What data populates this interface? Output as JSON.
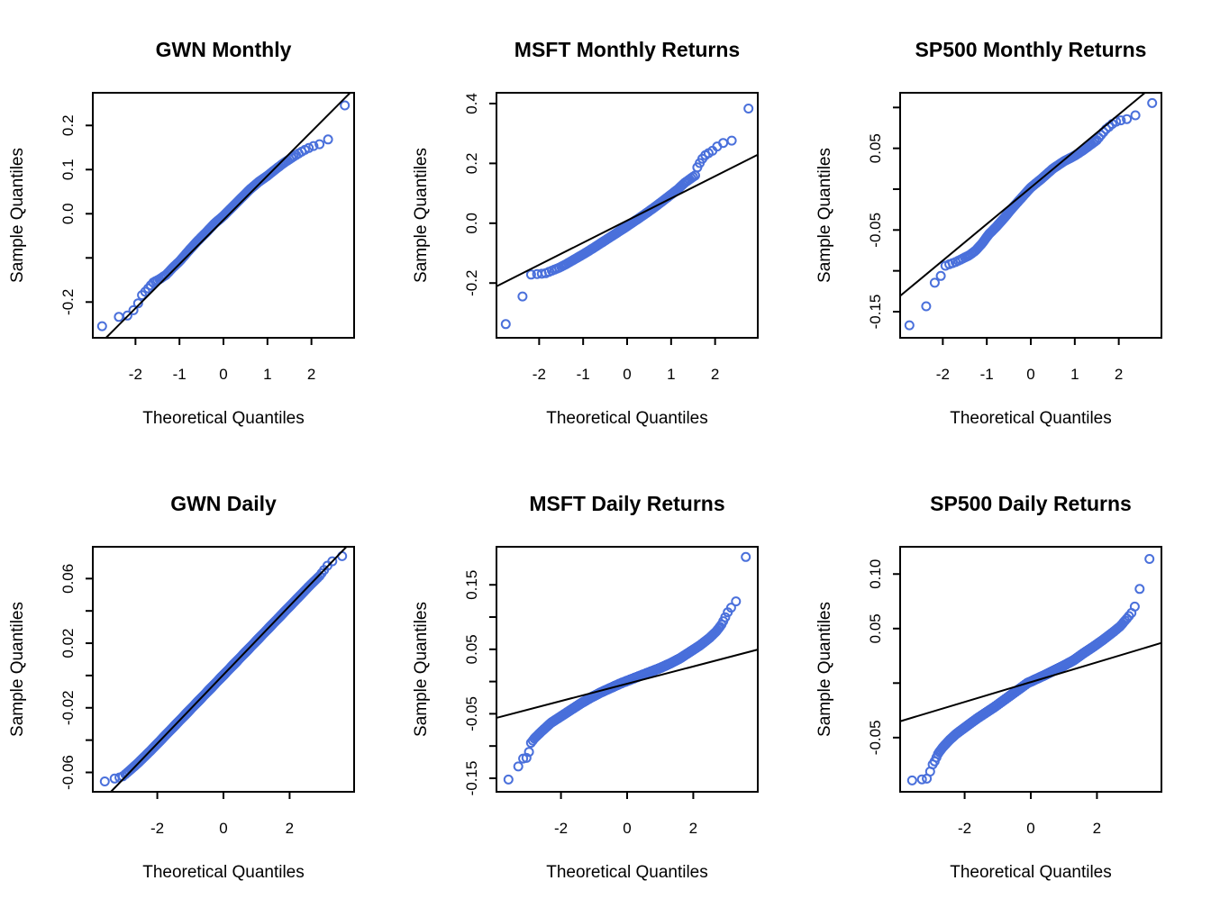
{
  "style": {
    "point_color": "#4A70DB",
    "line_color": "#000000",
    "text_color": "#000000",
    "background": "#FFFFFF"
  },
  "chart_data": [
    {
      "type": "scatter",
      "subtype": "qqnorm",
      "title": "GWN Monthly",
      "xlabel": "Theoretical Quantiles",
      "ylabel": "Sample Quantiles",
      "xlim": [
        -2.97,
        2.97
      ],
      "ylim": [
        -0.281,
        0.274
      ],
      "xticks": {
        "values": [
          -2,
          -1,
          0,
          1,
          2
        ],
        "labels": [
          "-2",
          "-1",
          "0",
          "1",
          "2"
        ]
      },
      "yticks": {
        "values": [
          0.2,
          0.1,
          0.0,
          -0.1,
          -0.2
        ],
        "labels": [
          "0.2",
          "0.1",
          "0.0",
          "",
          "-0.2"
        ]
      },
      "n_points": 172,
      "ref_line": {
        "slope": 0.1,
        "intercept": -0.014
      },
      "curve": [
        [
          -2.8,
          -0.257
        ],
        [
          -2.4,
          -0.234
        ],
        [
          -2.15,
          -0.23
        ],
        [
          -1.97,
          -0.21
        ],
        [
          -1.87,
          -0.186
        ],
        [
          -1.75,
          -0.174
        ],
        [
          -1.6,
          -0.156
        ],
        [
          -1.45,
          -0.148
        ],
        [
          -1.3,
          -0.138
        ],
        [
          -1.15,
          -0.122
        ],
        [
          -1.0,
          -0.108
        ],
        [
          -0.8,
          -0.085
        ],
        [
          -0.6,
          -0.063
        ],
        [
          -0.4,
          -0.043
        ],
        [
          -0.2,
          -0.022
        ],
        [
          0,
          -0.005
        ],
        [
          0.2,
          0.015
        ],
        [
          0.4,
          0.035
        ],
        [
          0.6,
          0.055
        ],
        [
          0.8,
          0.072
        ],
        [
          1.0,
          0.086
        ],
        [
          1.2,
          0.102
        ],
        [
          1.4,
          0.117
        ],
        [
          1.6,
          0.13
        ],
        [
          1.8,
          0.142
        ],
        [
          2.0,
          0.152
        ],
        [
          2.2,
          0.158
        ],
        [
          2.35,
          0.163
        ],
        [
          2.5,
          0.192
        ],
        [
          2.8,
          0.254
        ]
      ]
    },
    {
      "type": "scatter",
      "subtype": "qqnorm",
      "title": "MSFT Monthly Returns",
      "xlabel": "Theoretical Quantiles",
      "ylabel": "Sample Quantiles",
      "xlim": [
        -2.97,
        2.97
      ],
      "ylim": [
        -0.383,
        0.436
      ],
      "xticks": {
        "values": [
          -2,
          -1,
          0,
          1,
          2
        ],
        "labels": [
          "-2",
          "-1",
          "0",
          "1",
          "2"
        ]
      },
      "yticks": {
        "values": [
          0.4,
          0.2,
          0.0,
          -0.2
        ],
        "labels": [
          "0.4",
          "0.2",
          "0.0",
          "-0.2"
        ]
      },
      "n_points": 172,
      "ref_line": {
        "slope": 0.0741,
        "intercept": 0.009
      },
      "curve": [
        [
          -2.8,
          -0.347
        ],
        [
          -2.4,
          -0.254
        ],
        [
          -2.2,
          -0.172
        ],
        [
          -2.05,
          -0.17
        ],
        [
          -1.95,
          -0.169
        ],
        [
          -1.85,
          -0.167
        ],
        [
          -1.7,
          -0.158
        ],
        [
          -1.55,
          -0.149
        ],
        [
          -1.4,
          -0.138
        ],
        [
          -1.2,
          -0.121
        ],
        [
          -1.0,
          -0.104
        ],
        [
          -0.8,
          -0.086
        ],
        [
          -0.6,
          -0.067
        ],
        [
          -0.4,
          -0.048
        ],
        [
          -0.2,
          -0.029
        ],
        [
          0,
          -0.01
        ],
        [
          0.2,
          0.01
        ],
        [
          0.4,
          0.03
        ],
        [
          0.6,
          0.051
        ],
        [
          0.8,
          0.073
        ],
        [
          1.0,
          0.096
        ],
        [
          1.15,
          0.113
        ],
        [
          1.3,
          0.134
        ],
        [
          1.45,
          0.15
        ],
        [
          1.55,
          0.16
        ],
        [
          1.6,
          0.189
        ],
        [
          1.75,
          0.225
        ],
        [
          1.95,
          0.243
        ],
        [
          2.1,
          0.264
        ],
        [
          2.25,
          0.272
        ],
        [
          2.4,
          0.277
        ],
        [
          2.55,
          0.281
        ],
        [
          2.8,
          0.404
        ]
      ]
    },
    {
      "type": "scatter",
      "subtype": "qqnorm",
      "title": "SP500 Monthly Returns",
      "xlabel": "Theoretical Quantiles",
      "ylabel": "Sample Quantiles",
      "xlim": [
        -2.97,
        2.97
      ],
      "ylim": [
        -0.182,
        0.118
      ],
      "xticks": {
        "values": [
          -2,
          -1,
          0,
          1,
          2
        ],
        "labels": [
          "-2",
          "-1",
          "0",
          "1",
          "2"
        ]
      },
      "yticks": {
        "values": [
          0.1,
          0.05,
          0.0,
          -0.05,
          -0.1,
          -0.15
        ],
        "labels": [
          "",
          "0.05",
          "",
          "-0.05",
          "",
          "-0.15"
        ]
      },
      "n_points": 172,
      "ref_line": {
        "slope": 0.0447,
        "intercept": 0.002
      },
      "curve": [
        [
          -2.8,
          -0.169
        ],
        [
          -2.4,
          -0.147
        ],
        [
          -2.2,
          -0.115
        ],
        [
          -2.1,
          -0.113
        ],
        [
          -1.95,
          -0.094
        ],
        [
          -1.85,
          -0.092
        ],
        [
          -1.7,
          -0.089
        ],
        [
          -1.55,
          -0.085
        ],
        [
          -1.4,
          -0.081
        ],
        [
          -1.25,
          -0.075
        ],
        [
          -1.1,
          -0.066
        ],
        [
          -0.95,
          -0.055
        ],
        [
          -0.8,
          -0.047
        ],
        [
          -0.6,
          -0.035
        ],
        [
          -0.4,
          -0.022
        ],
        [
          -0.2,
          -0.01
        ],
        [
          0,
          0.002
        ],
        [
          0.25,
          0.013
        ],
        [
          0.5,
          0.025
        ],
        [
          0.75,
          0.034
        ],
        [
          1.0,
          0.041
        ],
        [
          1.2,
          0.048
        ],
        [
          1.5,
          0.06
        ],
        [
          1.7,
          0.073
        ],
        [
          1.9,
          0.082
        ],
        [
          2.1,
          0.085
        ],
        [
          2.3,
          0.087
        ],
        [
          2.5,
          0.096
        ],
        [
          2.8,
          0.107
        ]
      ]
    },
    {
      "type": "scatter",
      "subtype": "qqnorm",
      "title": "GWN Daily",
      "xlabel": "Theoretical Quantiles",
      "ylabel": "Sample Quantiles",
      "xlim": [
        -3.95,
        3.95
      ],
      "ylim": [
        -0.072,
        0.0797
      ],
      "xticks": {
        "values": [
          -2,
          0,
          2
        ],
        "labels": [
          "-2",
          "0",
          "2"
        ]
      },
      "yticks": {
        "values": [
          0.06,
          0.04,
          0.02,
          0.0,
          -0.02,
          -0.04,
          -0.06
        ],
        "labels": [
          "0.06",
          "",
          "0.02",
          "",
          "-0.02",
          "",
          "-0.06"
        ]
      },
      "n_points": 3000,
      "ref_line": {
        "slope": 0.0213,
        "intercept": 0.0005
      },
      "curve": [
        [
          -3.65,
          -0.066
        ],
        [
          -3.35,
          -0.064
        ],
        [
          -3.2,
          -0.0635
        ],
        [
          -3.05,
          -0.0625
        ],
        [
          -2.9,
          -0.06
        ],
        [
          -2.6,
          -0.0545
        ],
        [
          -2.2,
          -0.0465
        ],
        [
          -1.8,
          -0.038
        ],
        [
          -1.4,
          -0.0295
        ],
        [
          -1.0,
          -0.021
        ],
        [
          -0.6,
          -0.0125
        ],
        [
          -0.2,
          -0.004
        ],
        [
          0.2,
          0.0045
        ],
        [
          0.6,
          0.013
        ],
        [
          1.0,
          0.0215
        ],
        [
          1.4,
          0.03
        ],
        [
          1.8,
          0.0385
        ],
        [
          2.2,
          0.047
        ],
        [
          2.6,
          0.0555
        ],
        [
          2.9,
          0.0615
        ],
        [
          3.05,
          0.0655
        ],
        [
          3.2,
          0.0695
        ],
        [
          3.35,
          0.0715
        ],
        [
          3.65,
          0.0745
        ]
      ]
    },
    {
      "type": "scatter",
      "subtype": "qqnorm",
      "title": "MSFT Daily Returns",
      "xlabel": "Theoretical Quantiles",
      "ylabel": "Sample Quantiles",
      "xlim": [
        -3.95,
        3.95
      ],
      "ylim": [
        -0.171,
        0.209
      ],
      "xticks": {
        "values": [
          -2,
          0,
          2
        ],
        "labels": [
          "-2",
          "0",
          "2"
        ]
      },
      "yticks": {
        "values": [
          0.15,
          0.1,
          0.05,
          0.0,
          -0.05,
          -0.1,
          -0.15
        ],
        "labels": [
          "0.15",
          "",
          "0.05",
          "",
          "-0.05",
          "",
          "-0.15"
        ]
      },
      "n_points": 3000,
      "ref_line": {
        "slope": 0.0134,
        "intercept": -0.0034
      },
      "curve": [
        [
          -3.65,
          -0.154
        ],
        [
          -3.4,
          -0.146
        ],
        [
          -3.2,
          -0.12
        ],
        [
          -3.1,
          -0.119
        ],
        [
          -3.0,
          -0.118
        ],
        [
          -2.92,
          -0.096
        ],
        [
          -2.8,
          -0.088
        ],
        [
          -2.6,
          -0.078
        ],
        [
          -2.3,
          -0.064
        ],
        [
          -2.0,
          -0.054
        ],
        [
          -1.7,
          -0.044
        ],
        [
          -1.4,
          -0.034
        ],
        [
          -1.1,
          -0.025
        ],
        [
          -0.8,
          -0.017
        ],
        [
          -0.5,
          -0.01
        ],
        [
          -0.2,
          -0.003
        ],
        [
          0.1,
          0.003
        ],
        [
          0.4,
          0.009
        ],
        [
          0.7,
          0.015
        ],
        [
          1.0,
          0.021
        ],
        [
          1.3,
          0.028
        ],
        [
          1.6,
          0.036
        ],
        [
          1.9,
          0.046
        ],
        [
          2.2,
          0.056
        ],
        [
          2.5,
          0.068
        ],
        [
          2.7,
          0.078
        ],
        [
          2.85,
          0.088
        ],
        [
          2.95,
          0.098
        ],
        [
          3.05,
          0.108
        ],
        [
          3.15,
          0.115
        ],
        [
          3.3,
          0.125
        ],
        [
          3.45,
          0.187
        ],
        [
          3.65,
          0.196
        ]
      ]
    },
    {
      "type": "scatter",
      "subtype": "qqnorm",
      "title": "SP500 Daily Returns",
      "xlabel": "Theoretical Quantiles",
      "ylabel": "Sample Quantiles",
      "xlim": [
        -3.95,
        3.95
      ],
      "ylim": [
        -0.0997,
        0.125
      ],
      "xticks": {
        "values": [
          -2,
          0,
          2
        ],
        "labels": [
          "-2",
          "0",
          "2"
        ]
      },
      "yticks": {
        "values": [
          0.1,
          0.05,
          0.0,
          -0.05
        ],
        "labels": [
          "0.10",
          "0.05",
          "",
          "-0.05"
        ]
      },
      "n_points": 3000,
      "ref_line": {
        "slope": 0.0091,
        "intercept": 0.0009
      },
      "curve": [
        [
          -3.65,
          -0.0895
        ],
        [
          -3.35,
          -0.0885
        ],
        [
          -3.1,
          -0.0875
        ],
        [
          -3.0,
          -0.076
        ],
        [
          -2.9,
          -0.0715
        ],
        [
          -2.8,
          -0.0645
        ],
        [
          -2.65,
          -0.0585
        ],
        [
          -2.45,
          -0.052
        ],
        [
          -2.25,
          -0.0465
        ],
        [
          -2.05,
          -0.042
        ],
        [
          -1.85,
          -0.0375
        ],
        [
          -1.6,
          -0.032
        ],
        [
          -1.35,
          -0.027
        ],
        [
          -1.1,
          -0.022
        ],
        [
          -0.85,
          -0.0165
        ],
        [
          -0.6,
          -0.011
        ],
        [
          -0.35,
          -0.0055
        ],
        [
          -0.1,
          0.0
        ],
        [
          0.15,
          0.0035
        ],
        [
          0.4,
          0.007
        ],
        [
          0.7,
          0.0115
        ],
        [
          1.0,
          0.016
        ],
        [
          1.3,
          0.021
        ],
        [
          1.6,
          0.0275
        ],
        [
          1.9,
          0.0335
        ],
        [
          2.2,
          0.04
        ],
        [
          2.5,
          0.047
        ],
        [
          2.7,
          0.052
        ],
        [
          2.9,
          0.059
        ],
        [
          3.05,
          0.0645
        ],
        [
          3.2,
          0.0735
        ],
        [
          3.45,
          0.109
        ],
        [
          3.65,
          0.116
        ]
      ]
    }
  ]
}
